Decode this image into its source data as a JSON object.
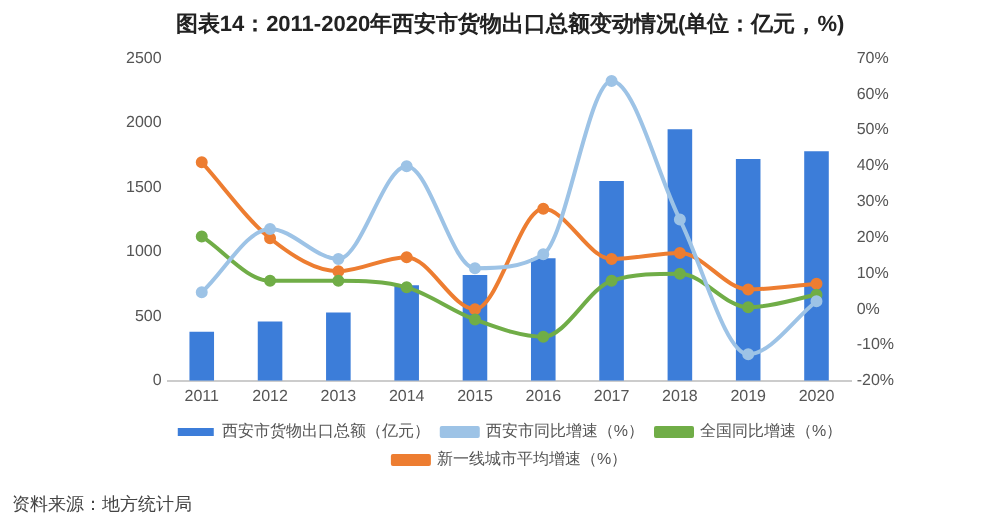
{
  "chart_data": {
    "type": "bar",
    "title": "图表14：2011-2020年西安市货物出口总额变动情况(单位：亿元，%)",
    "categories": [
      "2011",
      "2012",
      "2013",
      "2014",
      "2015",
      "2016",
      "2017",
      "2018",
      "2019",
      "2020"
    ],
    "series": [
      {
        "name": "西安市货物出口总额（亿元）",
        "color": "#3c7dd9",
        "values": [
          380,
          460,
          530,
          740,
          820,
          950,
          1550,
          1950,
          1720,
          1780
        ]
      },
      {
        "name": "西安市同比增速（%）",
        "type": "line",
        "axis": "y2",
        "color": "#9dc3e6",
        "values": [
          4.7,
          22.4,
          14,
          39.9,
          11.4,
          15.3,
          63.7,
          25,
          -12.6,
          2.2
        ]
      },
      {
        "name": "全国同比增速（%）",
        "type": "line",
        "axis": "y2",
        "color": "#70ad47",
        "values": [
          20.3,
          7.9,
          7.9,
          6.1,
          -2.9,
          -7.7,
          7.9,
          9.9,
          0.5,
          4
        ]
      },
      {
        "name": "新一线城市平均增速（%）",
        "type": "line",
        "axis": "y2",
        "color": "#ed7d31",
        "values": [
          41,
          19.8,
          10.6,
          14.5,
          0,
          28,
          14,
          15.7,
          5.5,
          7.1
        ]
      }
    ],
    "ylim": [
      0,
      2500
    ],
    "yticks": [
      0,
      500,
      1000,
      1500,
      2000,
      2500
    ],
    "y2lim": [
      -20,
      70
    ],
    "y2ticks": [
      {
        "value": -20,
        "label": "-20%"
      },
      {
        "value": -10,
        "label": "-10%"
      },
      {
        "value": 0,
        "label": "0%"
      },
      {
        "value": 10,
        "label": "10%"
      },
      {
        "value": 20,
        "label": "20%"
      },
      {
        "value": 30,
        "label": "30%"
      },
      {
        "value": 40,
        "label": "40%"
      },
      {
        "value": 50,
        "label": "50%"
      },
      {
        "value": 60,
        "label": "60%"
      },
      {
        "value": 70,
        "label": "70%"
      }
    ],
    "grid": false,
    "legend": "bottom",
    "marker": "circle",
    "annotations": [
      "资料来源：地方统计局"
    ]
  }
}
